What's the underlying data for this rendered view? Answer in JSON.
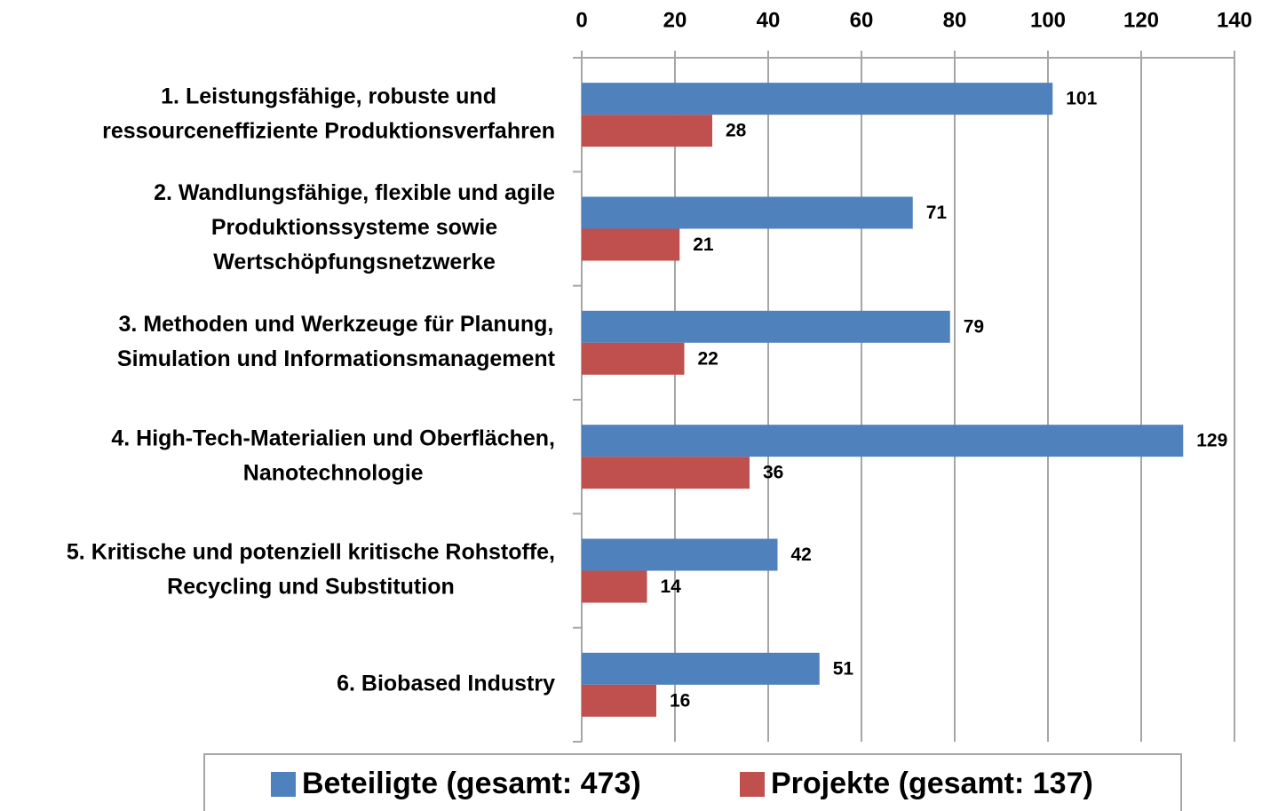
{
  "chart_data": {
    "type": "bar",
    "orientation": "horizontal",
    "categories": [
      [
        "1. Leistungsfähige, robuste und",
        "ressourceneffiziente Produktionsverfahren"
      ],
      [
        "2. Wandlungsfähige, flexible und agile",
        "Produktionssysteme sowie",
        "Wertschöpfungsnetzwerke"
      ],
      [
        "3. Methoden und Werkzeuge für Planung,",
        "Simulation und Informationsmanagement"
      ],
      [
        "4. High-Tech-Materialien und Oberflächen,",
        "Nanotechnologie"
      ],
      [
        "5. Kritische und potenziell kritische Rohstoffe,",
        "Recycling und Substitution"
      ],
      [
        "6. Biobased Industry"
      ]
    ],
    "series": [
      {
        "name": "Beteiligte (gesamt: 473)",
        "color": "#4f81bd",
        "values": [
          101,
          71,
          79,
          129,
          42,
          51
        ]
      },
      {
        "name": "Projekte (gesamt: 137)",
        "color": "#c0504d",
        "values": [
          28,
          21,
          22,
          36,
          14,
          16
        ]
      }
    ],
    "xlim": [
      0,
      140
    ],
    "xticks": [
      0,
      20,
      40,
      60,
      80,
      100,
      120,
      140
    ],
    "grid": true,
    "legend": "bottom"
  }
}
